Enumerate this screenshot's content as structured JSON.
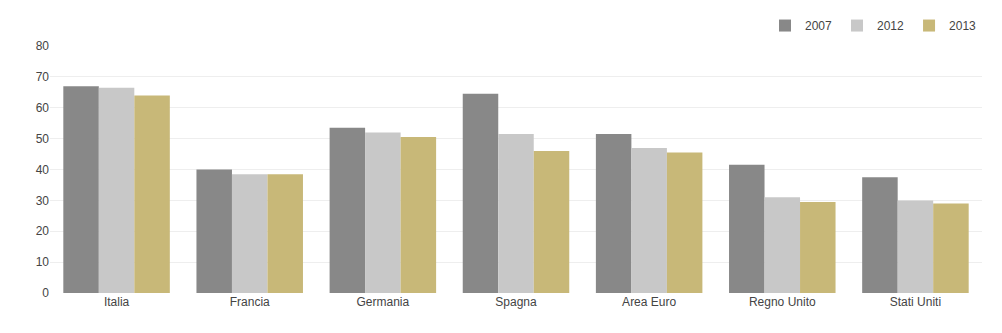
{
  "chart_data": {
    "type": "bar",
    "categories": [
      "Italia",
      "Francia",
      "Germania",
      "Spagna",
      "Area Euro",
      "Regno Unito",
      "Stati Uniti"
    ],
    "series": [
      {
        "name": "2007",
        "color": "#888888",
        "values": [
          67,
          40,
          53.5,
          64.5,
          51.5,
          41.5,
          37.5
        ]
      },
      {
        "name": "2012",
        "color": "#c8c8c8",
        "values": [
          66.5,
          38.5,
          52,
          51.5,
          47,
          31,
          30
        ]
      },
      {
        "name": "2013",
        "color": "#c8b878",
        "values": [
          64,
          38.5,
          50.5,
          46,
          45.5,
          29.5,
          29
        ]
      }
    ],
    "ylim": [
      0,
      80
    ],
    "yticks": [
      0,
      10,
      20,
      30,
      40,
      50,
      60,
      70,
      80
    ],
    "grid": true,
    "legend": "upper right"
  }
}
